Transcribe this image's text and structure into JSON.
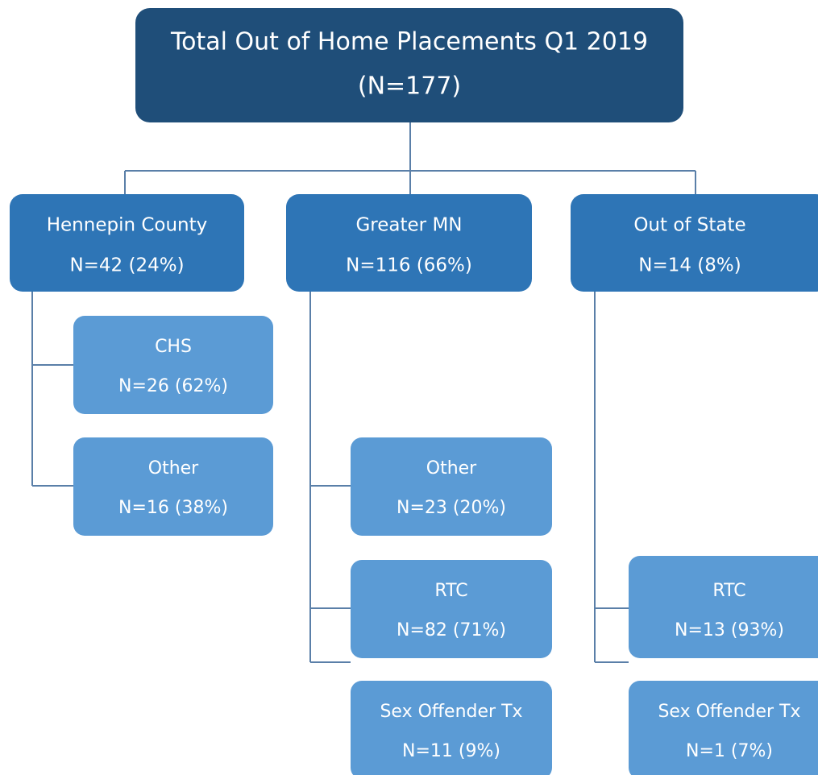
{
  "root": {
    "title": "Total Out of Home Placements Q1 2019",
    "count": "(N=177)"
  },
  "groups": [
    {
      "label": "Hennepin County",
      "count": "N=42 (24%)",
      "children": [
        {
          "label": "CHS",
          "count": "N=26 (62%)"
        },
        {
          "label": "Other",
          "count": "N=16 (38%)"
        }
      ]
    },
    {
      "label": "Greater MN",
      "count": "N=116 (66%)",
      "children": [
        {
          "label": "Other",
          "count": "N=23 (20%)"
        },
        {
          "label": "RTC",
          "count": "N=82 (71%)"
        },
        {
          "label": "Sex Offender Tx",
          "count": "N=11 (9%)"
        }
      ]
    },
    {
      "label": "Out of State",
      "count": "N=14 (8%)",
      "children": [
        {
          "label": "RTC",
          "count": "N=13 (93%)"
        },
        {
          "label": "Sex Offender Tx",
          "count": "N=1 (7%)"
        }
      ]
    }
  ]
}
